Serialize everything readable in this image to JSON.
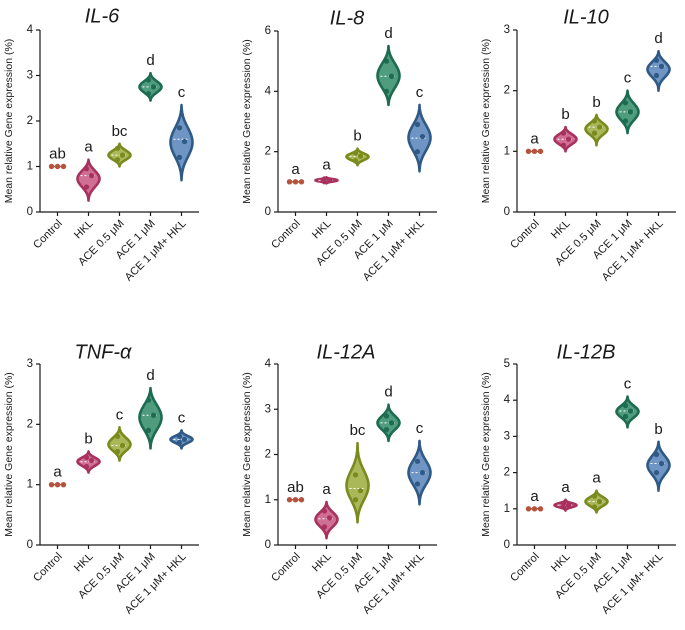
{
  "figure": {
    "categories": [
      "Control",
      "HKL",
      "ACE 0.5 μM",
      "ACE 1 μM",
      "ACE 1 μM+ HKL"
    ],
    "colors": [
      "#b5533c",
      "#a8325e",
      "#7a8a1e",
      "#1d6b50",
      "#2e5a85"
    ],
    "fill_colors": [
      "#d98a6c",
      "#cf6f94",
      "#aab85a",
      "#4f9c7e",
      "#6e95c4"
    ]
  },
  "chart_data": [
    {
      "type": "violin",
      "title": "IL-6",
      "ylabel": "Mean relative Gene expression (%)",
      "ylim": [
        0,
        4
      ],
      "yticks": [
        "0",
        "1",
        "2",
        "3",
        "4"
      ],
      "categories": [
        "Control",
        "HKL",
        "ACE 0.5 μM",
        "ACE 1 μM",
        "ACE 1 μM+ HKL"
      ],
      "series": [
        {
          "name": "Control",
          "values": [
            1.0,
            1.0,
            1.0
          ],
          "min": 1.0,
          "max": 1.0,
          "mean": 1.0,
          "letter": "ab"
        },
        {
          "name": "HKL",
          "values": [
            0.55,
            0.8,
            0.95
          ],
          "min": 0.25,
          "max": 1.15,
          "mean": 0.8,
          "letter": "a"
        },
        {
          "name": "ACE 0.5 μM",
          "values": [
            1.15,
            1.25,
            1.4
          ],
          "min": 1.0,
          "max": 1.5,
          "mean": 1.25,
          "letter": "bc"
        },
        {
          "name": "ACE 1 μM",
          "values": [
            2.6,
            2.75,
            2.9
          ],
          "min": 2.45,
          "max": 3.05,
          "mean": 2.75,
          "letter": "d"
        },
        {
          "name": "ACE 1 μM+ HKL",
          "values": [
            1.2,
            1.55,
            1.85
          ],
          "min": 0.7,
          "max": 2.35,
          "mean": 1.6,
          "letter": "c"
        }
      ]
    },
    {
      "type": "violin",
      "title": "IL-8",
      "ylabel": "Mean relative Gene expression (%)",
      "ylim": [
        0,
        6
      ],
      "yticks": [
        "0",
        "2",
        "4",
        "6"
      ],
      "categories": [
        "Control",
        "HKL",
        "ACE 0.5 μM",
        "ACE 1 μM",
        "ACE 1 μM+ HKL"
      ],
      "series": [
        {
          "name": "Control",
          "values": [
            1.0,
            1.0,
            1.0
          ],
          "min": 1.0,
          "max": 1.0,
          "mean": 1.0,
          "letter": "a"
        },
        {
          "name": "HKL",
          "values": [
            1.0,
            1.05,
            1.1
          ],
          "min": 0.95,
          "max": 1.15,
          "mean": 1.05,
          "letter": "a"
        },
        {
          "name": "ACE 0.5 μM",
          "values": [
            1.7,
            1.85,
            1.95
          ],
          "min": 1.55,
          "max": 2.1,
          "mean": 1.85,
          "letter": "b"
        },
        {
          "name": "ACE 1 μM",
          "values": [
            4.0,
            4.5,
            5.0
          ],
          "min": 3.55,
          "max": 5.5,
          "mean": 4.5,
          "letter": "d"
        },
        {
          "name": "ACE 1 μM+ HKL",
          "values": [
            2.0,
            2.5,
            2.9
          ],
          "min": 1.35,
          "max": 3.55,
          "mean": 2.45,
          "letter": "c"
        }
      ]
    },
    {
      "type": "violin",
      "title": "IL-10",
      "ylabel": "Mean relative Gene expression (%)",
      "ylim": [
        0,
        3
      ],
      "yticks": [
        "0",
        "1",
        "2",
        "3"
      ],
      "categories": [
        "Control",
        "HKL",
        "ACE 0.5 μM",
        "ACE 1 μM",
        "ACE 1 μM+ HKL"
      ],
      "series": [
        {
          "name": "Control",
          "values": [
            1.0,
            1.0,
            1.0
          ],
          "min": 1.0,
          "max": 1.0,
          "mean": 1.0,
          "letter": "a"
        },
        {
          "name": "HKL",
          "values": [
            1.1,
            1.2,
            1.3
          ],
          "min": 1.0,
          "max": 1.4,
          "mean": 1.2,
          "letter": "b"
        },
        {
          "name": "ACE 0.5 μM",
          "values": [
            1.3,
            1.4,
            1.5
          ],
          "min": 1.1,
          "max": 1.6,
          "mean": 1.4,
          "letter": "b"
        },
        {
          "name": "ACE 1 μM",
          "values": [
            1.5,
            1.65,
            1.8
          ],
          "min": 1.3,
          "max": 2.0,
          "mean": 1.65,
          "letter": "c"
        },
        {
          "name": "ACE 1 μM+ HKL",
          "values": [
            2.25,
            2.4,
            2.5
          ],
          "min": 2.0,
          "max": 2.65,
          "mean": 2.4,
          "letter": "d"
        }
      ]
    },
    {
      "type": "violin",
      "title": "TNF-α",
      "ylabel": "Mean relative Gene expression (%)",
      "ylim": [
        0,
        3
      ],
      "yticks": [
        "0",
        "1",
        "2",
        "3"
      ],
      "categories": [
        "Control",
        "HKL",
        "ACE 0.5 μM",
        "ACE 1 μM",
        "ACE 1 μM+ HKL"
      ],
      "series": [
        {
          "name": "Control",
          "values": [
            1.0,
            1.0,
            1.0
          ],
          "min": 1.0,
          "max": 1.0,
          "mean": 1.0,
          "letter": "a"
        },
        {
          "name": "HKL",
          "values": [
            1.3,
            1.4,
            1.45
          ],
          "min": 1.2,
          "max": 1.55,
          "mean": 1.38,
          "letter": "b"
        },
        {
          "name": "ACE 0.5 μM",
          "values": [
            1.55,
            1.65,
            1.8
          ],
          "min": 1.4,
          "max": 1.95,
          "mean": 1.65,
          "letter": "c"
        },
        {
          "name": "ACE 1 μM",
          "values": [
            1.9,
            2.15,
            2.4
          ],
          "min": 1.6,
          "max": 2.6,
          "mean": 2.15,
          "letter": "d"
        },
        {
          "name": "ACE 1 μM+ HKL",
          "values": [
            1.7,
            1.75,
            1.8
          ],
          "min": 1.6,
          "max": 1.9,
          "mean": 1.75,
          "letter": "c"
        }
      ]
    },
    {
      "type": "violin",
      "title": "IL-12A",
      "ylabel": "Mean relative Gene expression (%)",
      "ylim": [
        0,
        4
      ],
      "yticks": [
        "0",
        "1",
        "2",
        "3",
        "4"
      ],
      "categories": [
        "Control",
        "HKL",
        "ACE 0.5 μM",
        "ACE 1 μM",
        "ACE 1 μM+ HKL"
      ],
      "series": [
        {
          "name": "Control",
          "values": [
            1.0,
            1.0,
            1.0
          ],
          "min": 1.0,
          "max": 1.0,
          "mean": 1.0,
          "letter": "ab"
        },
        {
          "name": "HKL",
          "values": [
            0.4,
            0.6,
            0.75
          ],
          "min": 0.15,
          "max": 0.95,
          "mean": 0.58,
          "letter": "a"
        },
        {
          "name": "ACE 0.5 μM",
          "values": [
            1.0,
            1.2,
            1.55
          ],
          "min": 0.5,
          "max": 2.25,
          "mean": 1.25,
          "letter": "bc"
        },
        {
          "name": "ACE 1 μM",
          "values": [
            2.55,
            2.7,
            2.85
          ],
          "min": 2.3,
          "max": 3.1,
          "mean": 2.7,
          "letter": "d"
        },
        {
          "name": "ACE 1 μM+ HKL",
          "values": [
            1.35,
            1.6,
            1.85
          ],
          "min": 0.9,
          "max": 2.3,
          "mean": 1.6,
          "letter": "c"
        }
      ]
    },
    {
      "type": "violin",
      "title": "IL-12B",
      "ylabel": "Mean relative Gene expression (%)",
      "ylim": [
        0,
        5
      ],
      "yticks": [
        "0",
        "1",
        "2",
        "3",
        "4",
        "5"
      ],
      "categories": [
        "Control",
        "HKL",
        "ACE 0.5 μM",
        "ACE 1 μM",
        "ACE 1 μM+ HKL"
      ],
      "series": [
        {
          "name": "Control",
          "values": [
            1.0,
            1.0,
            1.0
          ],
          "min": 1.0,
          "max": 1.0,
          "mean": 1.0,
          "letter": "a"
        },
        {
          "name": "HKL",
          "values": [
            1.05,
            1.1,
            1.15
          ],
          "min": 0.95,
          "max": 1.25,
          "mean": 1.1,
          "letter": "a"
        },
        {
          "name": "ACE 0.5 μM",
          "values": [
            1.05,
            1.2,
            1.35
          ],
          "min": 0.9,
          "max": 1.5,
          "mean": 1.2,
          "letter": "a"
        },
        {
          "name": "ACE 1 μM",
          "values": [
            3.55,
            3.7,
            3.85
          ],
          "min": 3.25,
          "max": 4.1,
          "mean": 3.7,
          "letter": "c"
        },
        {
          "name": "ACE 1 μM+ HKL",
          "values": [
            2.0,
            2.25,
            2.5
          ],
          "min": 1.5,
          "max": 2.85,
          "mean": 2.25,
          "letter": "b"
        }
      ]
    }
  ]
}
